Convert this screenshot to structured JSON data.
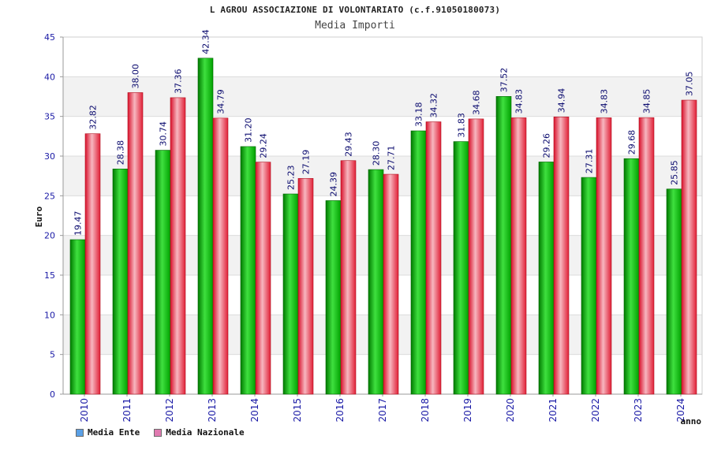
{
  "chart_data": {
    "type": "bar",
    "title": "L AGROU ASSOCIAZIONE DI VOLONTARIATO (c.f.91050180073)",
    "subtitle": "Media Importi",
    "xlabel": "anno",
    "ylabel": "Euro",
    "ylim": [
      0,
      45
    ],
    "yticks": [
      0,
      5,
      10,
      15,
      20,
      25,
      30,
      35,
      40,
      45
    ],
    "grid": true,
    "legend_position": "bottom-left",
    "categories": [
      "2010",
      "2011",
      "2012",
      "2013",
      "2014",
      "2015",
      "2016",
      "2017",
      "2018",
      "2019",
      "2020",
      "2021",
      "2022",
      "2023",
      "2024"
    ],
    "series": [
      {
        "name": "Media Ente",
        "color": "#00b300",
        "legend_color": "#5aa0e6",
        "values": [
          19.47,
          28.38,
          30.74,
          42.34,
          31.2,
          25.23,
          24.39,
          28.3,
          33.18,
          31.83,
          37.52,
          29.26,
          27.31,
          29.68,
          25.85
        ],
        "labels": [
          "19.47",
          "28.38",
          "30.74",
          "42.34",
          "31.20",
          "25.23",
          "24.39",
          "28.30",
          "33.18",
          "31.83",
          "37.52",
          "29.26",
          "27.31",
          "29.68",
          "25.85"
        ]
      },
      {
        "name": "Media Nazionale",
        "color": "#e8283c",
        "legend_color": "#e07ab0",
        "values": [
          32.82,
          38.0,
          37.36,
          34.79,
          29.24,
          27.19,
          29.43,
          27.71,
          34.32,
          34.68,
          34.83,
          34.94,
          34.83,
          34.85,
          37.05
        ],
        "labels": [
          "32.82",
          "38.00",
          "37.36",
          "34.79",
          "29.24",
          "27.19",
          "29.43",
          "27.71",
          "34.32",
          "34.68",
          "34.83",
          "34.94",
          "34.83",
          "34.85",
          "37.05"
        ]
      }
    ]
  }
}
